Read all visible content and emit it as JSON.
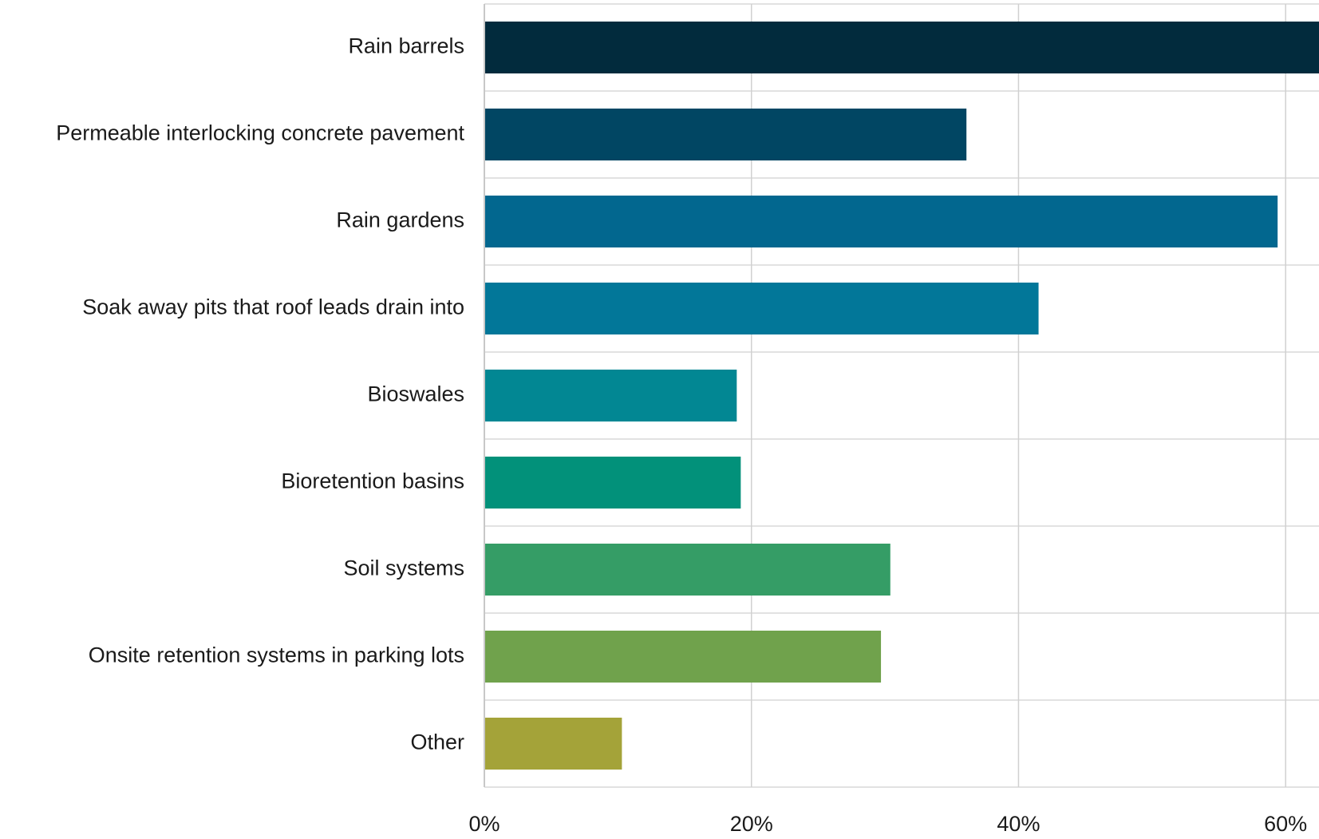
{
  "chart_data": {
    "type": "bar",
    "orientation": "horizontal",
    "categories": [
      "Rain barrels",
      "Permeable interlocking concrete pavement",
      "Rain gardens",
      "Soak away pits that roof leads drain into",
      "Bioswales",
      "Bioretention basins",
      "Soil systems",
      "Onsite retention systems in parking lots",
      "Other"
    ],
    "values": [
      63.2,
      36.1,
      59.4,
      41.5,
      18.9,
      19.2,
      30.4,
      29.7,
      10.3
    ],
    "colors": [
      "#022b3d",
      "#014663",
      "#02678f",
      "#027799",
      "#028793",
      "#02917a",
      "#359d66",
      "#70a24c",
      "#a4a339"
    ],
    "xlim": [
      0,
      62.5
    ],
    "x_ticks": [
      0,
      20,
      40,
      60
    ],
    "x_tick_labels": [
      "0%",
      "20%",
      "40%",
      "60%"
    ],
    "value_format": "percent",
    "grid": true,
    "legend": "none",
    "title": "",
    "xlabel": "",
    "ylabel": ""
  }
}
